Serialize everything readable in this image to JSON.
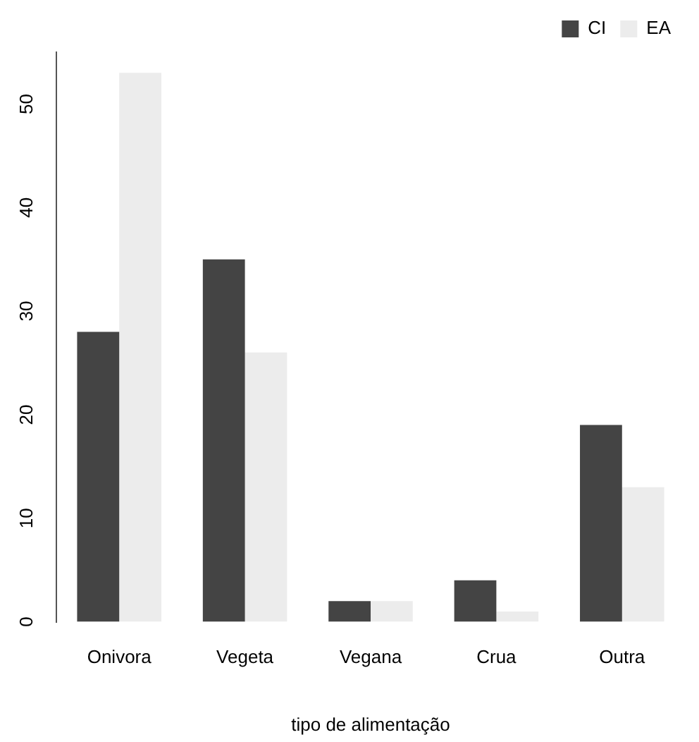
{
  "chart_data": {
    "type": "bar",
    "xlabel": "tipo de alimentação",
    "categories": [
      "Onivora",
      "Vegeta",
      "Vegana",
      "Crua",
      "Outra"
    ],
    "series": [
      {
        "name": "CI",
        "color": "#444444",
        "values": [
          28,
          35,
          2,
          4,
          19
        ]
      },
      {
        "name": "EA",
        "color": "#ececec",
        "values": [
          53,
          26,
          2,
          1,
          13
        ]
      }
    ],
    "ylim": [
      0,
      55
    ],
    "yticks": [
      0,
      10,
      20,
      30,
      40,
      50
    ],
    "grid": false,
    "legend": "top right"
  }
}
